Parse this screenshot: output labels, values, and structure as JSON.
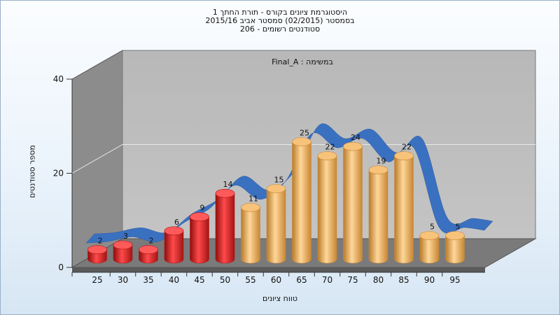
{
  "chart_data": {
    "type": "bar",
    "title": [
      "היסטוגרמת ציונים בקורס - תורת החתך 1",
      "בסמסטר  (02/2015)  סמסטר אביב 2015/16",
      "סטודנטים רשומים - 206"
    ],
    "annotation": "במשימה : Final_A",
    "xlabel": "טווח ציונים",
    "ylabel": "מספר סטודנטים",
    "categories": [
      "25",
      "30",
      "35",
      "40",
      "45",
      "50",
      "55",
      "60",
      "65",
      "70",
      "75",
      "80",
      "85",
      "90",
      "95"
    ],
    "values": [
      2,
      3,
      2,
      6,
      9,
      14,
      11,
      15,
      25,
      22,
      24,
      19,
      22,
      5,
      5
    ],
    "fail_count": 6,
    "ylim": [
      0,
      40
    ],
    "yticks": [
      0,
      20,
      40
    ],
    "grid": true,
    "colors": {
      "fail": "#e52b2b",
      "pass": "#f0b260",
      "trend": "#3a70c0"
    }
  }
}
